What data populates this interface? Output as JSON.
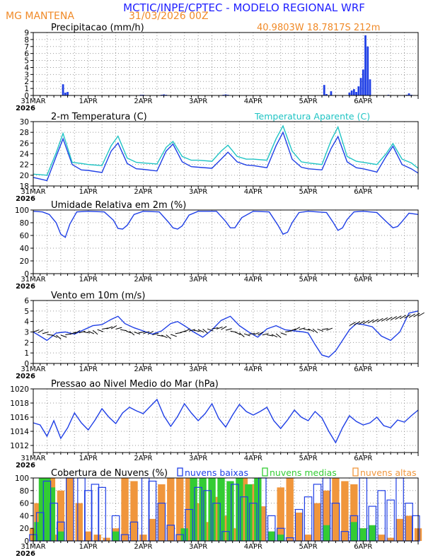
{
  "header": {
    "title": "MCTIC/INPE/CPTEC - MODELO REGIONAL WRF",
    "location": "MG MANTENA",
    "run": "31/03/2026 00Z",
    "coords": "40.9803W 18.7817S 212m"
  },
  "colors": {
    "blue": "#1f3fe6",
    "cyan": "#1fc4c4",
    "orange": "#f0963c",
    "green": "#33cc33",
    "black": "#000000",
    "header_blue": "#2020ff",
    "header_orange": "#f08a28"
  },
  "xaxis": {
    "hours_total": 168,
    "tick_labels": [
      "31MAR",
      "1APR",
      "2APR",
      "3APR",
      "4APR",
      "5APR",
      "6APR"
    ],
    "first_label_year": "2026"
  },
  "chart_data": [
    {
      "id": "precip",
      "type": "bar",
      "title": "Precipitacao (mm/h)",
      "ylim": [
        0,
        9
      ],
      "yticks": [
        0,
        1,
        2,
        3,
        4,
        5,
        6,
        7,
        8,
        9
      ],
      "series": [
        {
          "name": "Precipitacao",
          "color": "#1f3fe6",
          "x": [
            13,
            14,
            15,
            47,
            48,
            56,
            57,
            58,
            83,
            84,
            85,
            127,
            128,
            130,
            138,
            139,
            140,
            141,
            142,
            143,
            144,
            145,
            146,
            147,
            155,
            163,
            164,
            165
          ],
          "values": [
            1.6,
            0.4,
            0.5,
            0.1,
            0.1,
            0.1,
            0.15,
            0.1,
            0.1,
            0.15,
            0.1,
            1.5,
            0.2,
            0.6,
            0.4,
            0.7,
            0.9,
            0.5,
            1.3,
            2.5,
            3.7,
            8.6,
            7.0,
            2.3,
            0.1,
            0.1,
            0.3,
            0.1
          ]
        }
      ]
    },
    {
      "id": "temp",
      "type": "line",
      "title": "2-m Temperatura (C)",
      "title_right": "Temperatura Aparente (C)",
      "ylim": [
        18,
        30
      ],
      "yticks": [
        18,
        20,
        22,
        24,
        26,
        28,
        30
      ],
      "series": [
        {
          "name": "2-m Temperatura",
          "color": "#1f3fe6",
          "x": [
            0,
            6,
            10,
            13,
            17,
            21,
            24,
            30,
            34,
            37,
            41,
            45,
            48,
            54,
            58,
            61,
            65,
            69,
            72,
            78,
            82,
            85,
            89,
            93,
            96,
            102,
            106,
            109,
            113,
            117,
            120,
            126,
            130,
            133,
            137,
            141,
            144,
            150,
            154,
            157,
            161,
            165,
            168
          ],
          "values": [
            19.6,
            19.0,
            23.5,
            26.8,
            22.0,
            21.0,
            20.9,
            20.5,
            24.5,
            26.0,
            22.2,
            21.2,
            21.1,
            20.8,
            24.5,
            25.8,
            22.5,
            21.6,
            21.5,
            21.3,
            23.0,
            24.3,
            22.5,
            21.9,
            21.8,
            21.4,
            25.5,
            28.0,
            23.0,
            21.5,
            21.2,
            21.0,
            25.0,
            27.2,
            22.5,
            21.4,
            21.2,
            20.6,
            23.5,
            25.4,
            22.0,
            21.2,
            20.4
          ]
        },
        {
          "name": "Temperatura Aparente",
          "color": "#1fc4c4",
          "x": [
            0,
            6,
            10,
            13,
            17,
            21,
            24,
            30,
            34,
            37,
            41,
            45,
            48,
            54,
            58,
            61,
            65,
            69,
            72,
            78,
            82,
            85,
            89,
            93,
            96,
            102,
            106,
            109,
            113,
            117,
            120,
            126,
            130,
            133,
            137,
            141,
            144,
            150,
            154,
            157,
            161,
            165,
            168
          ],
          "values": [
            20.2,
            20.0,
            24.2,
            27.8,
            22.4,
            22.2,
            22.0,
            21.8,
            25.5,
            27.3,
            23.2,
            22.4,
            22.3,
            22.1,
            25.2,
            26.3,
            23.5,
            22.8,
            22.8,
            22.6,
            24.5,
            25.6,
            23.5,
            23.0,
            23.0,
            22.8,
            26.8,
            29.2,
            24.5,
            22.5,
            22.3,
            22.0,
            26.5,
            29.0,
            23.5,
            22.6,
            22.4,
            22.0,
            24.0,
            25.9,
            23.0,
            22.3,
            21.3
          ]
        }
      ]
    },
    {
      "id": "rh",
      "type": "line",
      "title": "Umidade Relativa em 2m (%)",
      "ylim": [
        0,
        100
      ],
      "yticks": [
        0,
        20,
        40,
        60,
        80,
        100
      ],
      "series": [
        {
          "name": "Umidade Relativa",
          "color": "#1f3fe6",
          "x": [
            0,
            4,
            7,
            10,
            12,
            14,
            16,
            19,
            24,
            31,
            35,
            37,
            39,
            41,
            44,
            48,
            55,
            59,
            61,
            63,
            65,
            68,
            72,
            80,
            84,
            86,
            88,
            91,
            96,
            103,
            107,
            109,
            111,
            113,
            116,
            120,
            128,
            131,
            133,
            135,
            137,
            140,
            144,
            150,
            154,
            157,
            159,
            161,
            164,
            168
          ],
          "values": [
            98,
            97,
            93,
            80,
            62,
            57,
            78,
            97,
            98,
            97,
            84,
            71,
            70,
            76,
            93,
            98,
            97,
            81,
            72,
            70,
            75,
            92,
            98,
            98,
            82,
            72,
            72,
            88,
            98,
            97,
            75,
            62,
            65,
            80,
            96,
            98,
            96,
            80,
            68,
            72,
            85,
            97,
            98,
            96,
            82,
            72,
            74,
            82,
            95,
            93
          ]
        }
      ]
    },
    {
      "id": "wind",
      "type": "line",
      "title": "Vento em 10m (m/s)",
      "ylim": [
        0,
        6
      ],
      "yticks": [
        0,
        1,
        2,
        3,
        4,
        5,
        6
      ],
      "series": [
        {
          "name": "Vento em 10m",
          "color": "#1f3fe6",
          "x": [
            0,
            3,
            6,
            10,
            14,
            18,
            22,
            26,
            30,
            34,
            37,
            40,
            44,
            48,
            52,
            56,
            60,
            63,
            66,
            70,
            74,
            78,
            82,
            86,
            90,
            94,
            98,
            102,
            106,
            110,
            114,
            118,
            120,
            123,
            126,
            129,
            132,
            135,
            138,
            141,
            144,
            148,
            152,
            156,
            160,
            164,
            168
          ],
          "values": [
            3.0,
            2.6,
            2.2,
            2.9,
            3.0,
            2.8,
            3.2,
            3.6,
            3.7,
            4.2,
            4.5,
            3.8,
            3.4,
            3.1,
            2.8,
            3.1,
            3.8,
            4.0,
            3.6,
            3.0,
            2.5,
            3.2,
            4.1,
            4.5,
            3.6,
            3.0,
            2.5,
            3.3,
            3.6,
            3.2,
            3.1,
            3.0,
            2.9,
            1.8,
            0.8,
            0.6,
            1.2,
            2.2,
            3.2,
            3.8,
            3.7,
            3.5,
            2.6,
            2.2,
            3.0,
            4.8,
            5.0
          ]
        }
      ]
    },
    {
      "id": "pressure",
      "type": "line",
      "title": "Pressao ao Nivel Medio do Mar (hPa)",
      "ylim": [
        1011,
        1020
      ],
      "yticks": [
        1012,
        1014,
        1016,
        1018,
        1020
      ],
      "series": [
        {
          "name": "Pressao",
          "color": "#1f3fe6",
          "x": [
            0,
            3,
            6,
            9,
            12,
            15,
            18,
            21,
            24,
            27,
            30,
            33,
            36,
            39,
            42,
            45,
            48,
            51,
            54,
            57,
            60,
            63,
            66,
            69,
            72,
            75,
            78,
            81,
            84,
            87,
            90,
            93,
            96,
            99,
            102,
            105,
            108,
            111,
            114,
            117,
            120,
            123,
            126,
            129,
            132,
            135,
            138,
            141,
            144,
            147,
            150,
            153,
            156,
            159,
            162,
            165,
            168
          ],
          "values": [
            1015.2,
            1014.9,
            1013.3,
            1015.5,
            1013.0,
            1014.5,
            1016.6,
            1015.2,
            1014.2,
            1015.6,
            1017.2,
            1016.0,
            1015.1,
            1016.6,
            1017.4,
            1016.9,
            1016.5,
            1017.5,
            1018.5,
            1016.2,
            1014.7,
            1016.1,
            1017.9,
            1016.6,
            1015.5,
            1016.5,
            1017.9,
            1015.8,
            1014.6,
            1016.3,
            1017.8,
            1016.8,
            1016.3,
            1016.8,
            1017.4,
            1015.5,
            1014.4,
            1015.6,
            1017.0,
            1016.0,
            1015.5,
            1016.8,
            1015.9,
            1014.0,
            1012.4,
            1014.5,
            1016.2,
            1015.4,
            1014.9,
            1015.2,
            1016.0,
            1014.8,
            1014.5,
            1015.6,
            1015.3,
            1016.2,
            1017.0
          ]
        }
      ]
    },
    {
      "id": "clouds",
      "type": "bar",
      "title": "Cobertura de Nuvens (%)",
      "ylim": [
        0,
        100
      ],
      "yticks": [
        0,
        20,
        40,
        60,
        80,
        100
      ],
      "legend": [
        "nuvens baixas",
        "nuvens medias",
        "nuvens altas"
      ],
      "series": [
        {
          "name": "nuvens baixas",
          "color": "#1f3fe6",
          "x": [
            0,
            3,
            6,
            9,
            12,
            16,
            21,
            24,
            27,
            30,
            36,
            40,
            44,
            49,
            52,
            56,
            60,
            64,
            68,
            72,
            76,
            80,
            84,
            88,
            92,
            96,
            100,
            104,
            108,
            112,
            116,
            120,
            124,
            128,
            132,
            136,
            140,
            144,
            148,
            152,
            156,
            160,
            164,
            167
          ],
          "values": [
            10,
            45,
            95,
            60,
            30,
            100,
            100,
            80,
            90,
            85,
            40,
            10,
            30,
            100,
            95,
            60,
            25,
            10,
            50,
            85,
            80,
            60,
            15,
            90,
            70,
            60,
            100,
            40,
            20,
            5,
            50,
            70,
            90,
            100,
            60,
            15,
            40,
            100,
            55,
            80,
            65,
            100,
            60,
            40
          ]
        },
        {
          "name": "nuvens medias",
          "color": "#33cc33",
          "x": [
            2,
            4,
            6,
            8,
            12,
            36,
            66,
            70,
            74,
            78,
            82,
            86,
            90,
            94,
            98,
            104,
            108,
            128,
            140,
            144,
            148
          ],
          "values": [
            30,
            100,
            100,
            85,
            15,
            15,
            20,
            100,
            100,
            100,
            100,
            95,
            100,
            90,
            100,
            15,
            10,
            25,
            30,
            20,
            25
          ]
        },
        {
          "name": "nuvens altas",
          "color": "#f0963c",
          "x": [
            0,
            2,
            5,
            8,
            10,
            12,
            16,
            20,
            24,
            28,
            32,
            36,
            40,
            44,
            48,
            52,
            56,
            60,
            64,
            68,
            72,
            76,
            80,
            84,
            88,
            92,
            96,
            100,
            104,
            108,
            112,
            116,
            120,
            124,
            128,
            132,
            136,
            140,
            144,
            148,
            152,
            156,
            160,
            164,
            168
          ],
          "values": [
            20,
            60,
            100,
            100,
            10,
            80,
            100,
            60,
            15,
            10,
            5,
            20,
            100,
            95,
            10,
            35,
            90,
            100,
            100,
            100,
            60,
            30,
            70,
            40,
            20,
            100,
            90,
            55,
            15,
            85,
            100,
            45,
            10,
            60,
            80,
            100,
            95,
            90,
            20,
            15,
            10,
            5,
            35,
            40,
            20
          ]
        }
      ]
    }
  ]
}
